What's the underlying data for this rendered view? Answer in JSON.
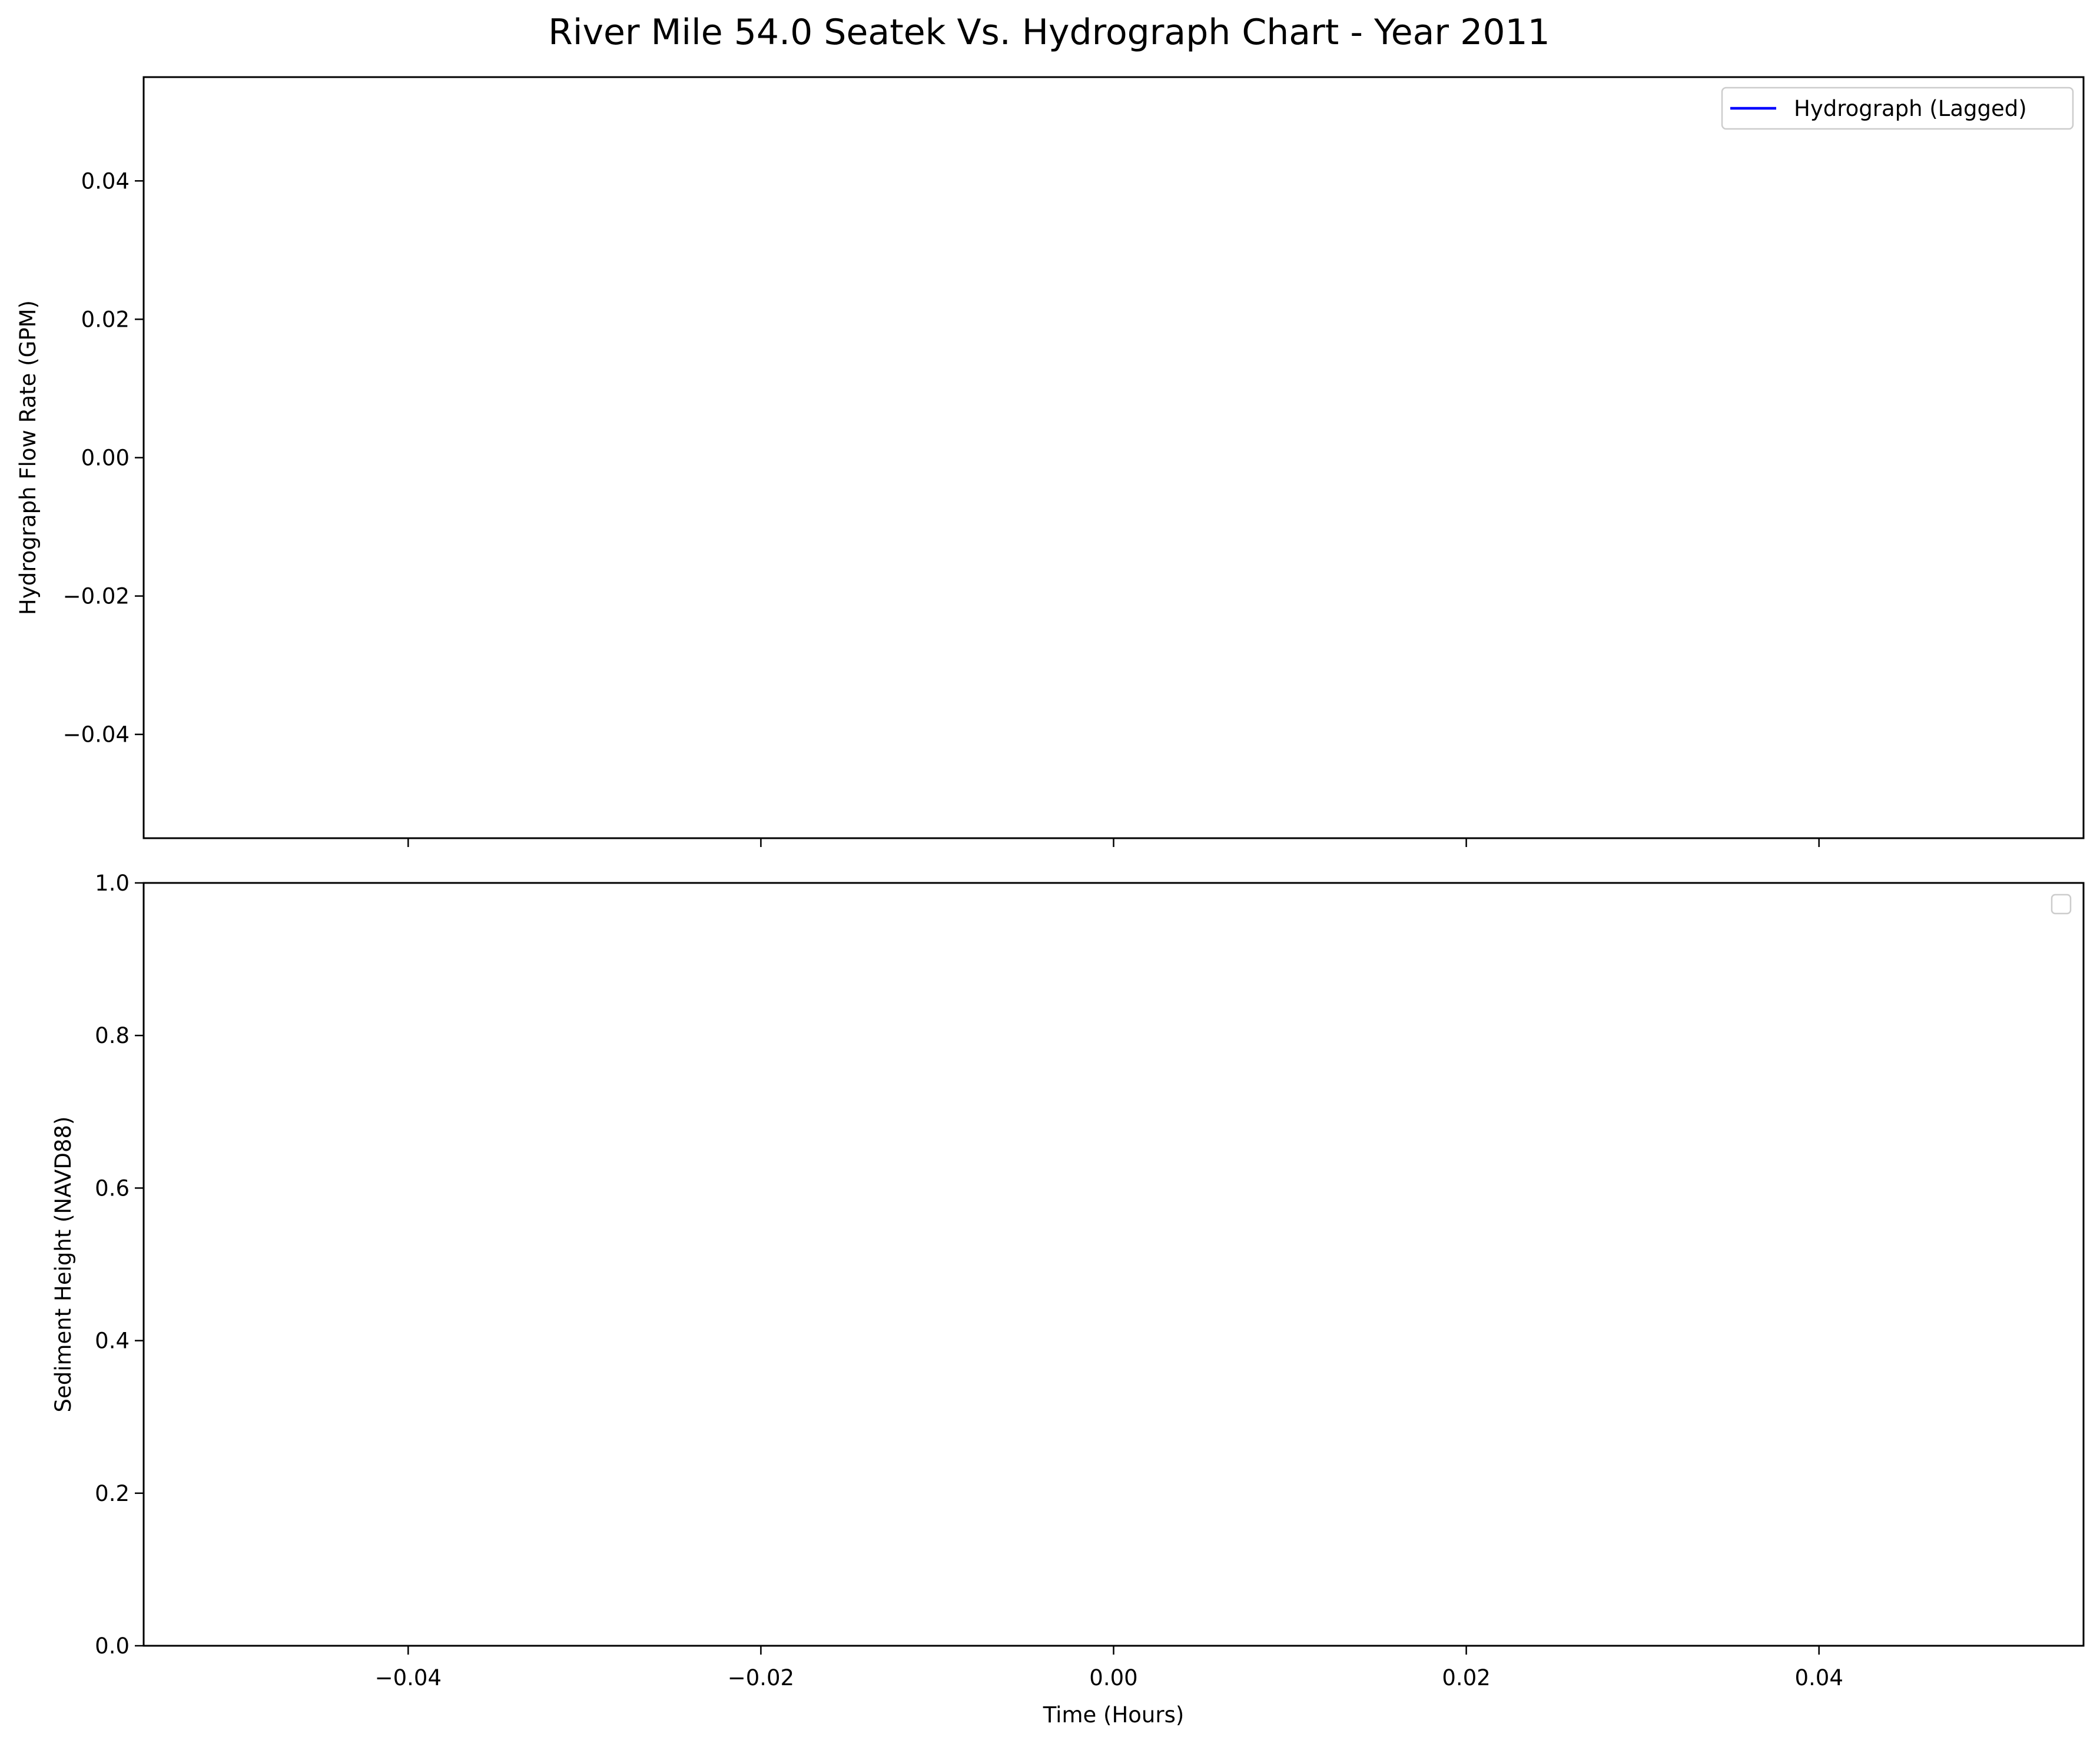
{
  "title": "River Mile 54.0 Seatek Vs. Hydrograph Chart - Year 2011",
  "chart_data": [
    {
      "type": "line",
      "panel": "top",
      "ylabel": "Hydrograph Flow Rate (GPM)",
      "xlabel": "",
      "xlim": [
        -0.055,
        0.055
      ],
      "ylim": [
        -0.055,
        0.055
      ],
      "xticks": [
        -0.04,
        -0.02,
        0.0,
        0.02,
        0.04
      ],
      "xtick_labels_visible": false,
      "yticks": [
        -0.04,
        -0.02,
        0.0,
        0.02,
        0.04
      ],
      "ytick_labels": [
        "−0.04",
        "−0.02",
        "0.00",
        "0.02",
        "0.04"
      ],
      "grid": false,
      "legend": {
        "location": "top-right",
        "entries": [
          {
            "label": "Hydrograph (Lagged)",
            "color": "#0000ff"
          }
        ]
      },
      "series": [
        {
          "name": "Hydrograph (Lagged)",
          "color": "#0000ff",
          "x": [],
          "y": []
        }
      ]
    },
    {
      "type": "line",
      "panel": "bottom",
      "ylabel": "Sediment Height (NAVD88)",
      "xlabel": "Time (Hours)",
      "xlim": [
        -0.055,
        0.055
      ],
      "ylim": [
        0.0,
        1.0
      ],
      "xticks": [
        -0.04,
        -0.02,
        0.0,
        0.02,
        0.04
      ],
      "xtick_labels": [
        "−0.04",
        "−0.02",
        "0.00",
        "0.02",
        "0.04"
      ],
      "yticks": [
        0.0,
        0.2,
        0.4,
        0.6,
        0.8,
        1.0
      ],
      "ytick_labels": [
        "0.0",
        "0.2",
        "0.4",
        "0.6",
        "0.8",
        "1.0"
      ],
      "grid": false,
      "legend": {
        "location": "top-right",
        "entries": []
      },
      "series": []
    }
  ]
}
